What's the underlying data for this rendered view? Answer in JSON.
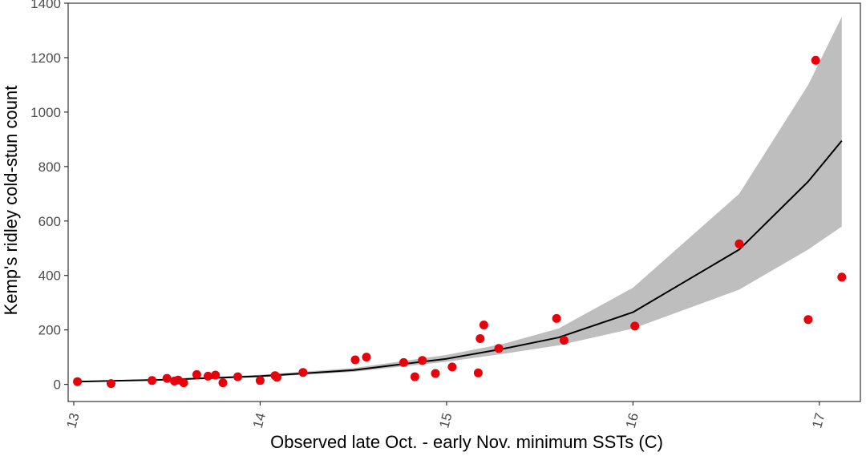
{
  "chart_data": {
    "type": "scatter",
    "title": "",
    "xlabel": "Observed late Oct. - early Nov. minimum SSTs (C)",
    "ylabel": "Kemp's ridley cold-stun count",
    "xlim": [
      12.97,
      17.22
    ],
    "ylim": [
      -63,
      1400
    ],
    "x_ticks": [
      13,
      14,
      15,
      16,
      17
    ],
    "x_tick_labels": [
      "13",
      "14",
      "15",
      "16",
      "17"
    ],
    "y_ticks": [
      0,
      200,
      400,
      600,
      800,
      1000,
      1200,
      1400
    ],
    "y_tick_labels": [
      "0",
      "200",
      "400",
      "600",
      "800",
      "1000",
      "1200",
      "1400"
    ],
    "grid": false,
    "legend": "none",
    "points": {
      "color": "#e8000b",
      "x": [
        13.02,
        13.2,
        13.42,
        13.5,
        13.54,
        13.56,
        13.59,
        13.66,
        13.72,
        13.76,
        13.8,
        13.88,
        14.0,
        14.08,
        14.09,
        14.23,
        14.51,
        14.57,
        14.77,
        14.83,
        14.87,
        14.94,
        15.03,
        15.17,
        15.18,
        15.2,
        15.28,
        15.59,
        15.63,
        16.01,
        16.57,
        16.94,
        16.98,
        17.12
      ],
      "y": [
        10,
        3,
        14,
        22,
        12,
        16,
        6,
        36,
        30,
        34,
        6,
        28,
        14,
        32,
        26,
        44,
        90,
        100,
        80,
        28,
        88,
        40,
        64,
        42,
        168,
        218,
        132,
        242,
        162,
        214,
        516,
        238,
        1190,
        394
      ]
    },
    "fit_line": {
      "color": "#000000",
      "x": [
        13.02,
        13.5,
        14.0,
        14.5,
        15.0,
        15.3,
        15.6,
        16.0,
        16.57,
        16.94,
        17.12
      ],
      "y": [
        10,
        17,
        30,
        52,
        94,
        130,
        172,
        265,
        495,
        745,
        895
      ]
    },
    "confidence_band": {
      "color": "#bebebe",
      "x": [
        13.02,
        13.5,
        14.0,
        14.5,
        15.0,
        15.3,
        15.6,
        16.0,
        16.57,
        16.94,
        17.12
      ],
      "lower": [
        8,
        15,
        26,
        46,
        83,
        112,
        143,
        205,
        348,
        495,
        580
      ],
      "upper": [
        12,
        20,
        35,
        60,
        108,
        148,
        205,
        355,
        700,
        1100,
        1350
      ]
    }
  }
}
